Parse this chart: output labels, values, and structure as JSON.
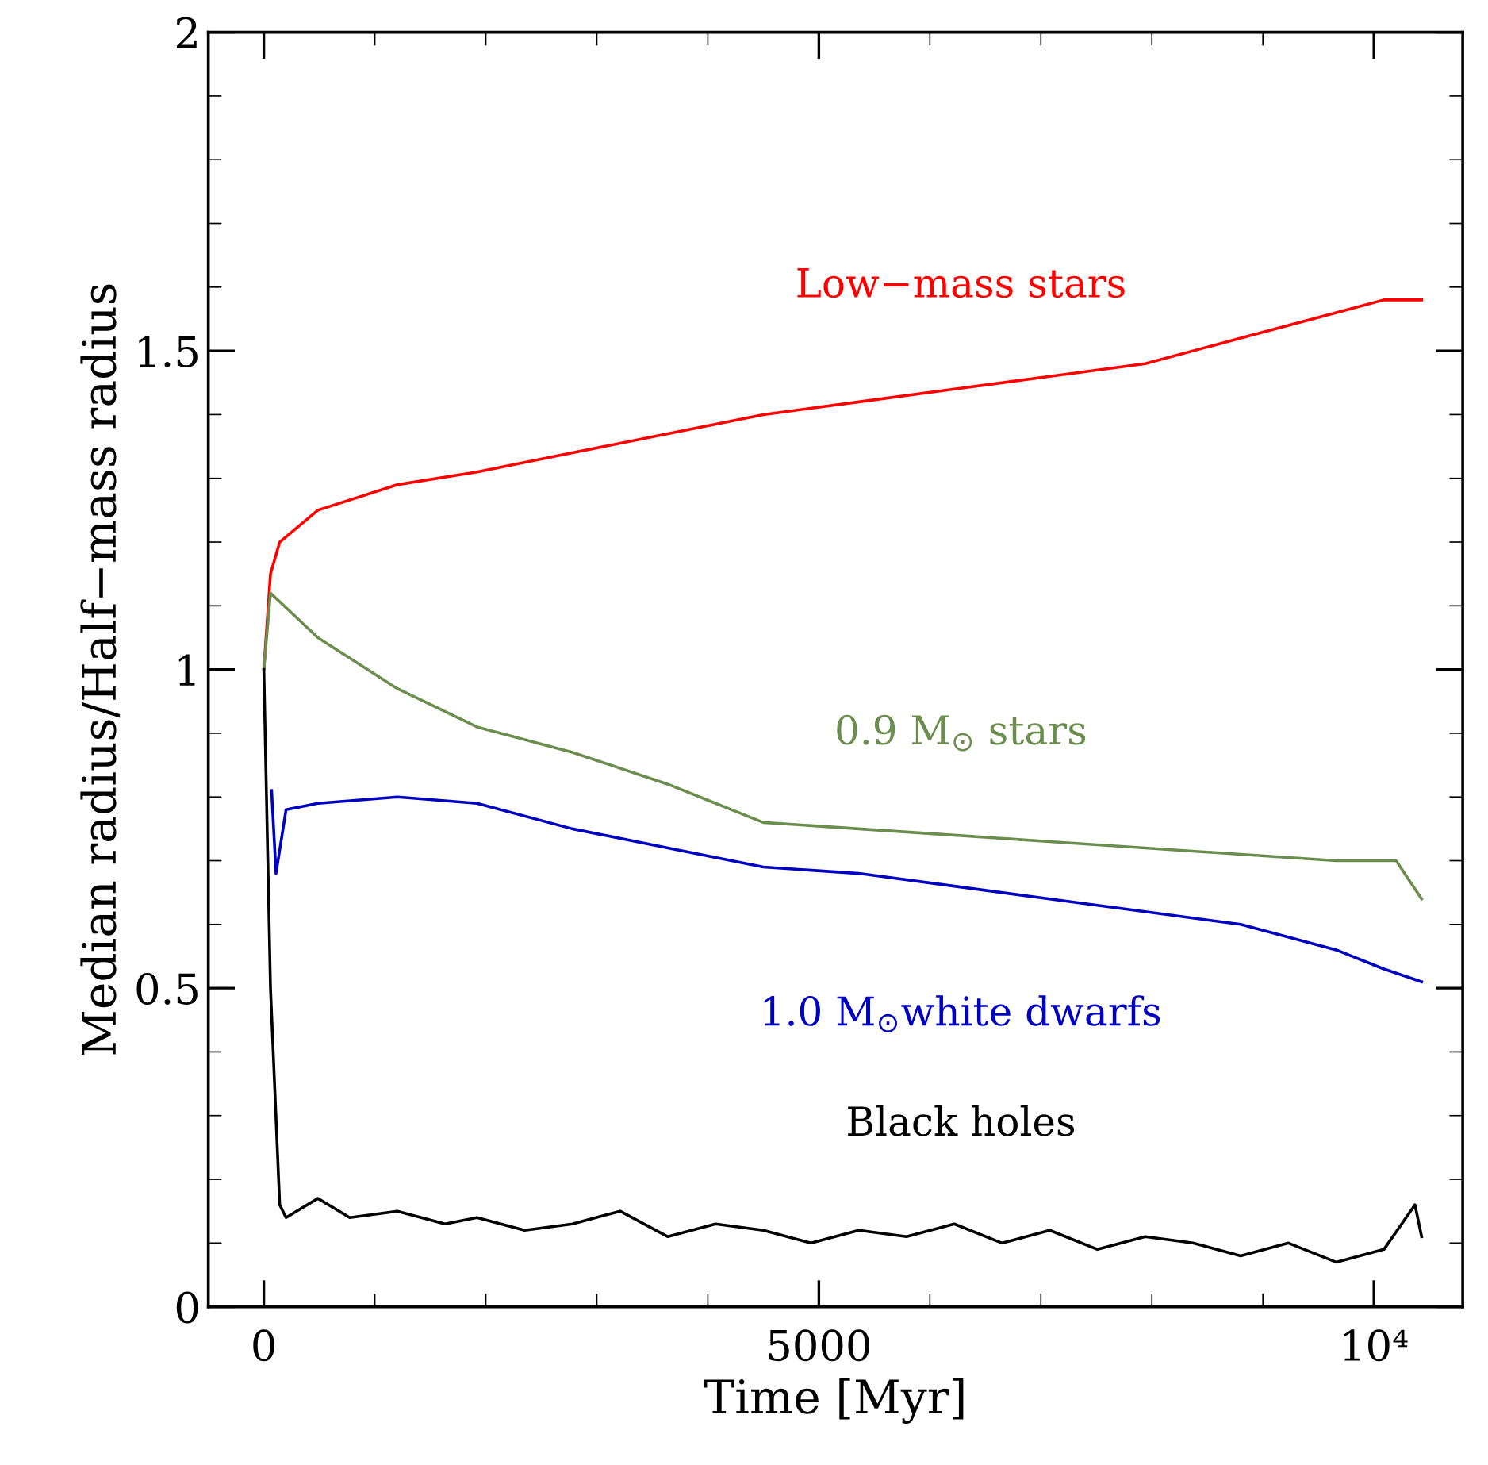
{
  "chart_data": {
    "type": "line",
    "xlabel": "Time [Myr]",
    "ylabel": "Median radius/Half−mass radius",
    "xlim": [
      -500,
      10800
    ],
    "ylim": [
      0,
      2
    ],
    "xticks": [
      0,
      5000,
      {
        "value": 10000,
        "label": "10⁴"
      }
    ],
    "yticks": [
      0,
      0.5,
      1,
      1.5,
      2
    ],
    "grid": false,
    "legend": false,
    "marker": "none",
    "line_style": "solid",
    "series": [
      {
        "name": "Low−mass stars",
        "color": "#ff0000",
        "x": [
          0,
          60,
          143,
          487,
          1203,
          1920,
          2780,
          3640,
          4500,
          5360,
          6220,
          7080,
          7940,
          8800,
          9230,
          9660,
          10090,
          10430
        ],
        "values": [
          1.0,
          1.15,
          1.2,
          1.25,
          1.29,
          1.31,
          1.34,
          1.37,
          1.4,
          1.42,
          1.44,
          1.46,
          1.48,
          1.52,
          1.54,
          1.56,
          1.58,
          1.58
        ]
      },
      {
        "name": "0.9 M$_{⊙}$ stars",
        "color": "#6b8e4e",
        "x": [
          0,
          60,
          487,
          1203,
          1920,
          2780,
          3640,
          4070,
          4500,
          5360,
          6220,
          7080,
          7940,
          8800,
          9660,
          10200,
          10430
        ],
        "values": [
          1.0,
          1.12,
          1.05,
          0.97,
          0.91,
          0.87,
          0.82,
          0.79,
          0.76,
          0.75,
          0.74,
          0.73,
          0.72,
          0.71,
          0.7,
          0.7,
          0.64
        ]
      },
      {
        "name": "1.0 M$_{⊙}$white dwarfs",
        "color": "#0000c0",
        "x": [
          70,
          110,
          200,
          487,
          1203,
          1920,
          2780,
          3640,
          4500,
          5360,
          6220,
          7080,
          7940,
          8800,
          9660,
          10090,
          10430
        ],
        "values": [
          0.81,
          0.68,
          0.78,
          0.79,
          0.8,
          0.79,
          0.75,
          0.72,
          0.69,
          0.68,
          0.66,
          0.64,
          0.62,
          0.6,
          0.56,
          0.53,
          0.51
        ]
      },
      {
        "name": "Black holes",
        "color": "#000000",
        "x": [
          0,
          60,
          143,
          200,
          487,
          774,
          1203,
          1633,
          1920,
          2350,
          2780,
          3210,
          3640,
          4070,
          4500,
          4930,
          5360,
          5790,
          6220,
          6650,
          7080,
          7510,
          7940,
          8370,
          8800,
          9230,
          9660,
          10090,
          10370,
          10430
        ],
        "values": [
          1.0,
          0.5,
          0.16,
          0.14,
          0.17,
          0.14,
          0.15,
          0.13,
          0.14,
          0.12,
          0.13,
          0.15,
          0.11,
          0.13,
          0.12,
          0.1,
          0.12,
          0.11,
          0.13,
          0.1,
          0.12,
          0.09,
          0.11,
          0.1,
          0.08,
          0.1,
          0.07,
          0.09,
          0.16,
          0.11
        ]
      }
    ]
  }
}
